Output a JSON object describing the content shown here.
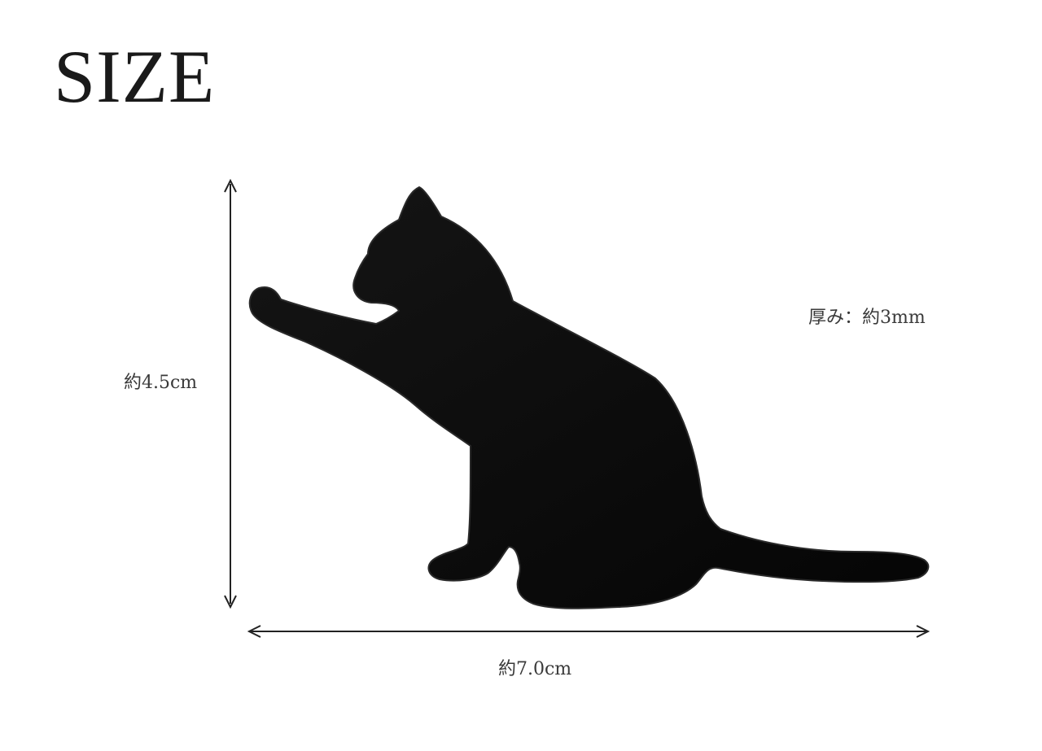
{
  "title": "SIZE",
  "dimensions": {
    "height_label": "約4.5cm",
    "width_label": "約7.0cm",
    "thickness_label": "厚み：約3mm"
  },
  "product": {
    "shape_icon": "cat-silhouette-icon",
    "color": "#0a0a0a"
  }
}
